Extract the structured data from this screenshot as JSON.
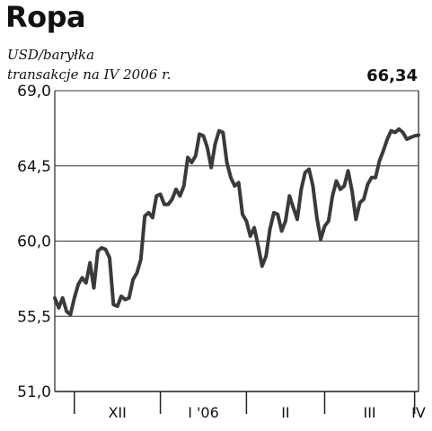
{
  "chart_data": {
    "type": "line",
    "title": "Ropa",
    "unit": "USD/baryłka",
    "subtitle": "transakcje na IV 2006 r.",
    "last_value_label": "66,34",
    "ylim": [
      51.0,
      69.0
    ],
    "y_ticks": [
      {
        "value": 69.0,
        "label": "69,0"
      },
      {
        "value": 64.5,
        "label": "64,5"
      },
      {
        "value": 60.0,
        "label": "60,0"
      },
      {
        "value": 55.5,
        "label": "55,5"
      },
      {
        "value": 51.0,
        "label": "51,0"
      }
    ],
    "grid": "horizontal",
    "x_labels": [
      {
        "label": "XII",
        "start_index": 5,
        "end_index": 27
      },
      {
        "label": "I '06",
        "start_index": 27,
        "end_index": 49
      },
      {
        "label": "II",
        "start_index": 49,
        "end_index": 69
      },
      {
        "label": "III",
        "start_index": 69,
        "end_index": 92
      },
      {
        "label": "IV",
        "start_index": 92,
        "end_index": 94
      }
    ],
    "series": [
      {
        "values": [
          56.6,
          56.0,
          56.6,
          55.8,
          55.6,
          56.6,
          57.4,
          57.8,
          57.5,
          58.7,
          57.2,
          59.4,
          59.6,
          59.5,
          59.0,
          56.2,
          56.1,
          56.7,
          56.5,
          56.6,
          57.7,
          58.1,
          58.9,
          61.5,
          61.7,
          61.4,
          62.7,
          62.8,
          62.2,
          62.2,
          62.5,
          63.1,
          62.7,
          63.3,
          65.0,
          64.7,
          65.1,
          66.4,
          66.3,
          65.6,
          64.4,
          65.8,
          66.6,
          66.5,
          64.7,
          63.8,
          63.3,
          63.5,
          61.6,
          61.2,
          60.3,
          60.8,
          59.7,
          58.5,
          59.1,
          60.7,
          61.7,
          61.6,
          60.6,
          61.2,
          62.7,
          62.0,
          61.3,
          63.1,
          64.1,
          64.3,
          63.3,
          61.4,
          60.1,
          60.9,
          61.2,
          62.7,
          63.6,
          63.1,
          63.3,
          64.2,
          63.0,
          61.3,
          62.3,
          62.5,
          63.4,
          63.8,
          63.8,
          64.8,
          65.4,
          66.1,
          66.6,
          66.5,
          66.7,
          66.5,
          66.1,
          66.2,
          66.3,
          66.34
        ]
      }
    ]
  }
}
